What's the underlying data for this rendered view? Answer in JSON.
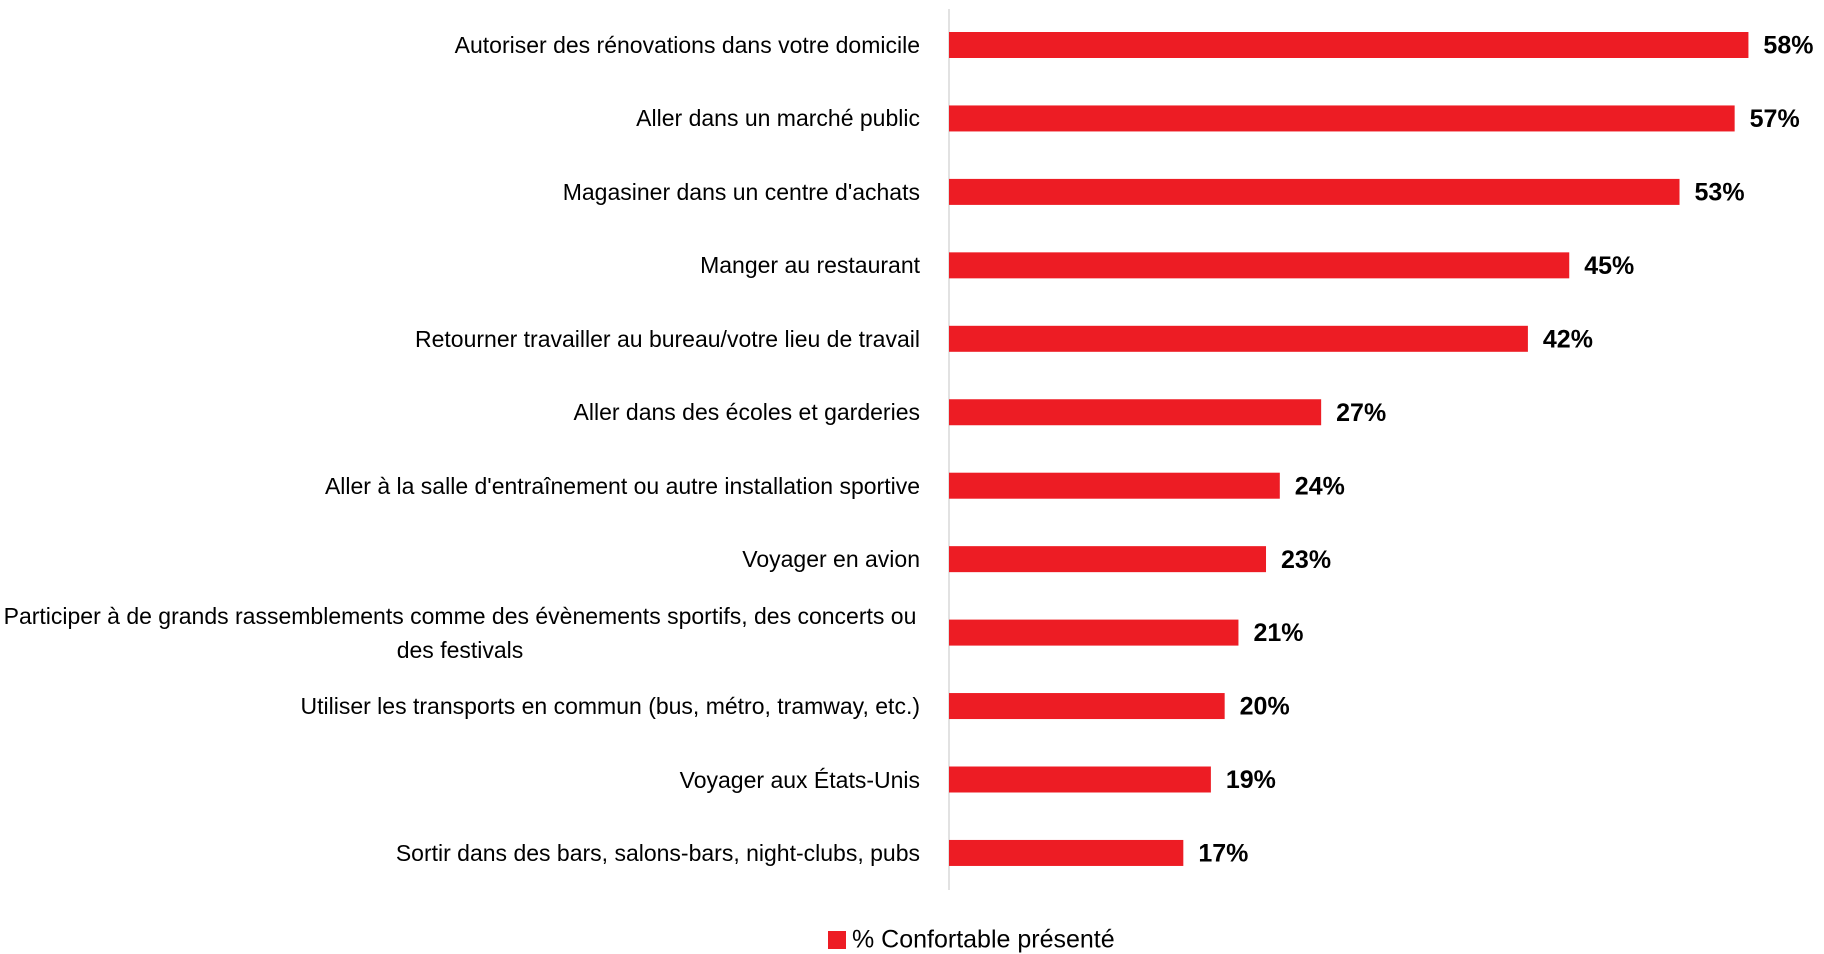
{
  "chart_data": {
    "type": "bar",
    "orientation": "horizontal",
    "categories": [
      "Autoriser des rénovations dans votre domicile",
      "Aller dans un marché public",
      "Magasiner dans un centre d'achats",
      "Manger au restaurant",
      "Retourner travailler au bureau/votre lieu de travail",
      "Aller dans des écoles et garderies",
      "Aller à la salle d'entraînement ou autre installation sportive",
      "Voyager en avion",
      "Participer à de grands rassemblements comme des évènements sportifs, des concerts ou des festivals",
      "Utiliser les transports en commun (bus, métro, tramway, etc.)",
      "Voyager aux États-Unis",
      "Sortir dans des bars, salons-bars, night-clubs, pubs"
    ],
    "series": [
      {
        "name": "% Confortable présenté",
        "color": "#ed1c24",
        "values": [
          58,
          57,
          53,
          45,
          42,
          27,
          24,
          23,
          21,
          20,
          19,
          17
        ],
        "value_labels": [
          "58%",
          "57%",
          "53%",
          "45%",
          "42%",
          "27%",
          "24%",
          "23%",
          "21%",
          "20%",
          "19%",
          "17%"
        ]
      }
    ],
    "xlim": [
      0,
      60
    ],
    "legend": "bottom"
  }
}
